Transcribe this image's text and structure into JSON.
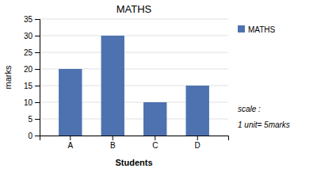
{
  "chart_data": {
    "type": "bar",
    "title": "MATHS",
    "categories": [
      "A",
      "B",
      "C",
      "D"
    ],
    "series": [
      {
        "name": "MATHS",
        "color": "#4e72b0",
        "values": [
          20,
          30,
          10,
          15
        ]
      }
    ],
    "xlabel": "Students",
    "ylabel": "marks",
    "ylim": [
      0,
      35
    ],
    "yticks": [
      0,
      5,
      10,
      15,
      20,
      25,
      30,
      35
    ],
    "grid": true,
    "legend": "right",
    "annotations": [
      "scale :",
      "1 unit= 5marks"
    ]
  }
}
